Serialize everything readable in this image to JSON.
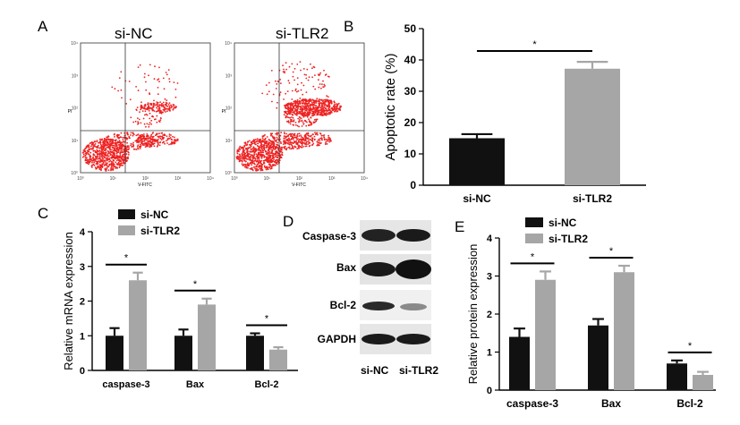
{
  "panels": {
    "A": "A",
    "B": "B",
    "C": "C",
    "D": "D",
    "E": "E"
  },
  "flow": {
    "plots": [
      {
        "title": "si-NC",
        "xlabel": "V-FITC",
        "ylabel": "PI"
      },
      {
        "title": "si-TLR2",
        "xlabel": "V-FITC",
        "ylabel": "PI"
      }
    ],
    "ticks": [
      "10⁰",
      "10¹",
      "10²",
      "10³",
      "10⁴"
    ]
  },
  "western": {
    "proteins": [
      "Caspase-3",
      "Bax",
      "Bcl-2",
      "GAPDH"
    ],
    "lanes": [
      "si-NC",
      "si-TLR2"
    ]
  },
  "colors": {
    "nc": "#111111",
    "tlr2": "#a6a6a6",
    "dots": "#ee2222"
  },
  "chart_data": [
    {
      "id": "B",
      "type": "bar",
      "categories": [
        "si-NC",
        "si-TLR2"
      ],
      "values": [
        15.0,
        37.2
      ],
      "errors": [
        1.3,
        2.2
      ],
      "ylabel": "Apoptotic rate (%)",
      "ylim": [
        0,
        50
      ],
      "yticks": [
        0,
        10,
        20,
        30,
        40,
        50
      ],
      "significance": [
        {
          "label": "*"
        }
      ]
    },
    {
      "id": "C",
      "type": "bar",
      "categories": [
        "caspase-3",
        "Bax",
        "Bcl-2"
      ],
      "series": [
        {
          "name": "si-NC",
          "values": [
            1.0,
            1.0,
            1.0
          ],
          "errors": [
            0.22,
            0.18,
            0.07
          ]
        },
        {
          "name": "si-TLR2",
          "values": [
            2.6,
            1.9,
            0.6
          ],
          "errors": [
            0.22,
            0.17,
            0.07
          ]
        }
      ],
      "ylabel": "Relative mRNA expression",
      "ylim": [
        0,
        4
      ],
      "yticks": [
        0,
        1,
        2,
        3,
        4
      ],
      "significance": [
        {
          "label": "*"
        },
        {
          "label": "*"
        },
        {
          "label": "*"
        }
      ]
    },
    {
      "id": "E",
      "type": "bar",
      "categories": [
        "caspase-3",
        "Bax",
        "Bcl-2"
      ],
      "series": [
        {
          "name": "si-NC",
          "values": [
            1.4,
            1.7,
            0.7
          ],
          "errors": [
            0.22,
            0.17,
            0.08
          ]
        },
        {
          "name": "si-TLR2",
          "values": [
            2.9,
            3.1,
            0.4
          ],
          "errors": [
            0.22,
            0.17,
            0.08
          ]
        }
      ],
      "ylabel": "Relative protein expression",
      "ylim": [
        0,
        4
      ],
      "yticks": [
        0,
        1,
        2,
        3,
        4
      ],
      "significance": [
        {
          "label": "*"
        },
        {
          "label": "*"
        },
        {
          "label": "*"
        }
      ]
    }
  ]
}
